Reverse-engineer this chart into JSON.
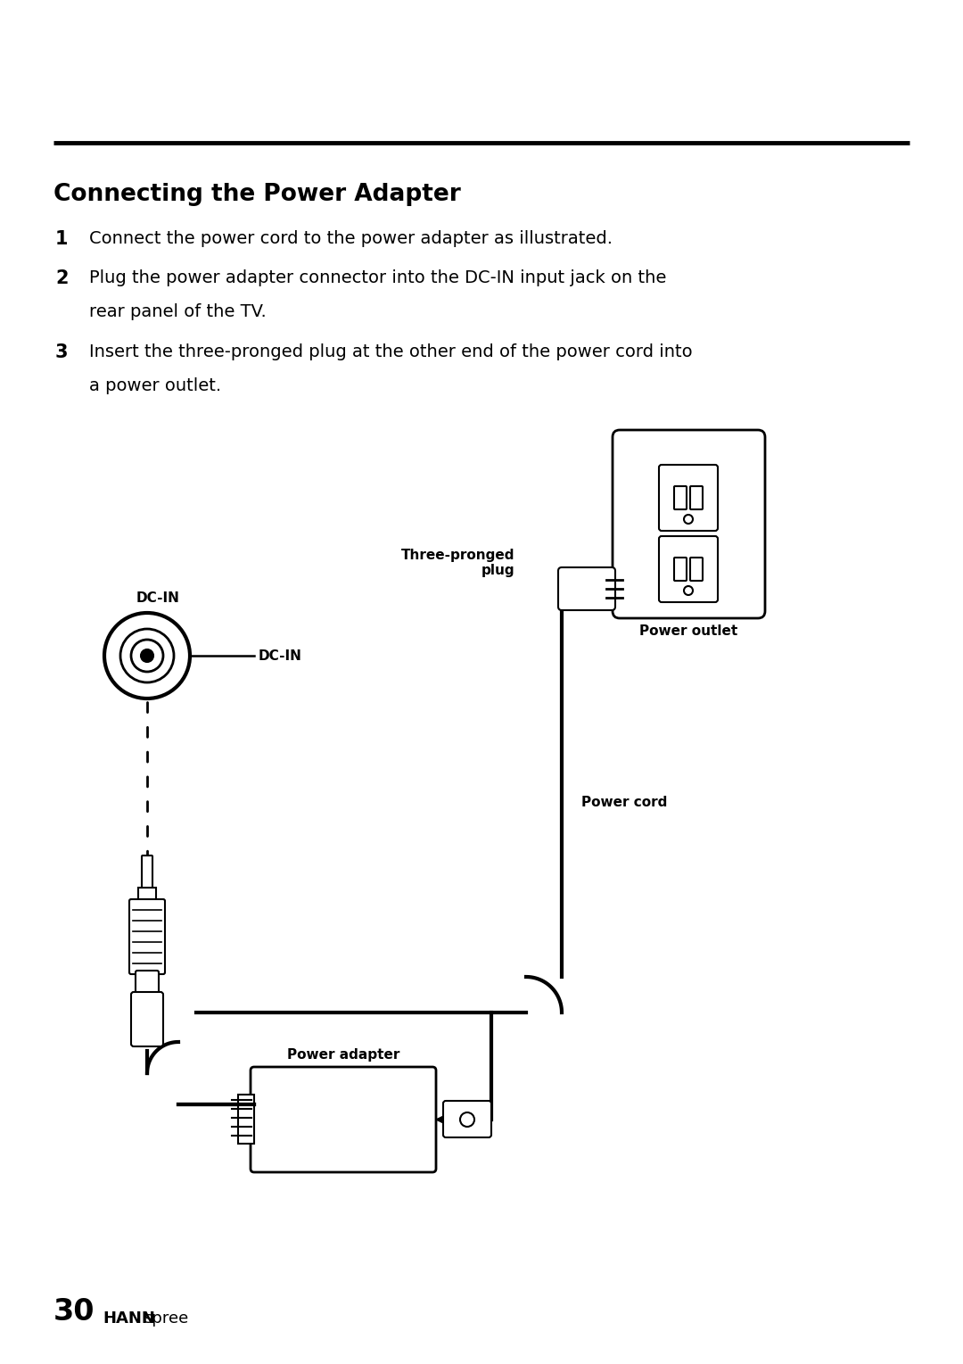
{
  "bg_color": "#ffffff",
  "text_color": "#000000",
  "title": "Connecting the Power Adapter",
  "line1_num": "1",
  "line1_text": "Connect the power cord to the power adapter as illustrated.",
  "line2_num": "2",
  "line2_text_a": "Plug the power adapter connector into the DC-IN input jack on the",
  "line2_text_b": "rear panel of the TV.",
  "line3_num": "3",
  "line3_text_a": "Insert the three-pronged plug at the other end of the power cord into",
  "line3_text_b": "a power outlet.",
  "footer_num": "30",
  "footer_brand_bold": "HANN",
  "footer_brand_normal": "spree",
  "label_dcin_top": "DC-IN",
  "label_dcin_right": "DC-IN",
  "label_three_pronged": "Three-pronged\nplug",
  "label_power_outlet": "Power outlet",
  "label_power_cord": "Power cord",
  "label_power_adapter": "Power adapter"
}
